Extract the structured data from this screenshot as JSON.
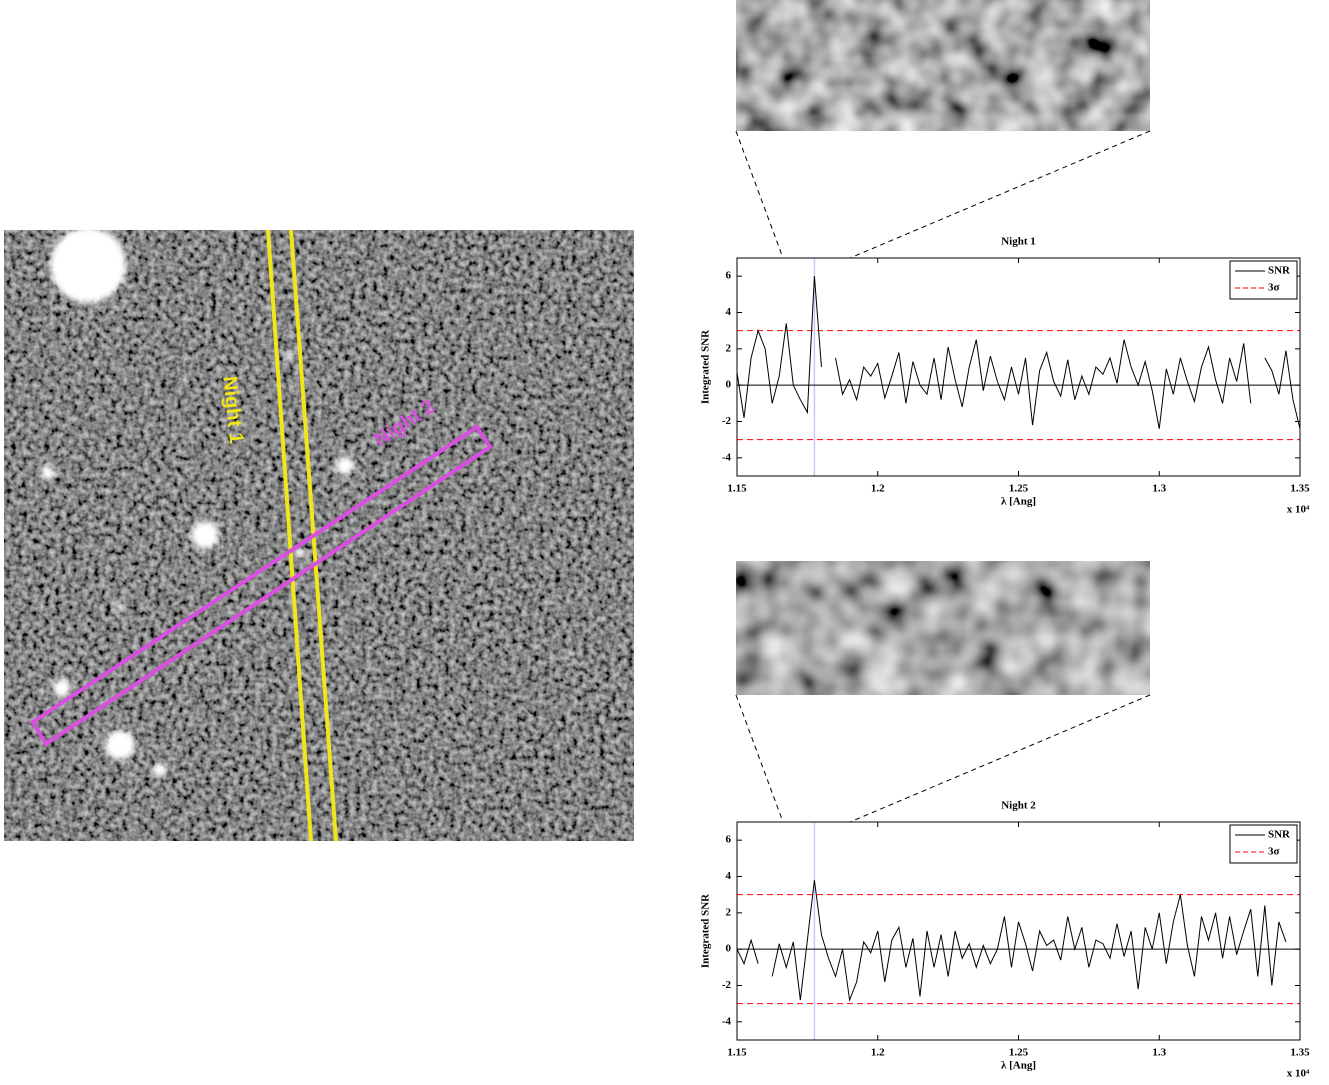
{
  "image": {
    "labels": [
      "Night 1",
      "Night 2"
    ]
  },
  "chart_data": [
    {
      "type": "line",
      "title": "Night 1",
      "xlabel": "λ [Ang]",
      "ylabel": "Integrated SNR",
      "x_offset_text": "x 10⁴",
      "x": [
        1.15,
        1.1525,
        1.155,
        1.1575,
        1.16,
        1.1625,
        1.165,
        1.1675,
        1.17,
        1.1725,
        1.175,
        1.1775,
        1.18,
        1.1825,
        1.185,
        1.1875,
        1.19,
        1.1925,
        1.195,
        1.1975,
        1.2,
        1.2025,
        1.205,
        1.2075,
        1.21,
        1.2125,
        1.215,
        1.2175,
        1.22,
        1.2225,
        1.225,
        1.2275,
        1.23,
        1.2325,
        1.235,
        1.2375,
        1.24,
        1.2425,
        1.245,
        1.2475,
        1.25,
        1.2525,
        1.255,
        1.2575,
        1.26,
        1.2625,
        1.265,
        1.2675,
        1.27,
        1.2725,
        1.275,
        1.2775,
        1.28,
        1.2825,
        1.285,
        1.2875,
        1.29,
        1.2925,
        1.295,
        1.2975,
        1.3,
        1.3025,
        1.305,
        1.3075,
        1.31,
        1.3125,
        1.315,
        1.3175,
        1.32,
        1.3225,
        1.325,
        1.3275,
        1.33,
        1.3325,
        1.335,
        1.3375,
        1.34,
        1.3425,
        1.345,
        1.3475,
        1.35
      ],
      "series": [
        {
          "name": "SNR",
          "color": "#000000",
          "values": [
            0.7,
            -1.8,
            1.5,
            3.0,
            2.0,
            -1.0,
            0.5,
            3.4,
            0.0,
            -0.8,
            -1.5,
            6.0,
            1.0,
            null,
            1.5,
            -0.5,
            0.3,
            -0.8,
            1.0,
            0.5,
            1.2,
            -0.7,
            0.5,
            1.8,
            -1.0,
            1.3,
            0.0,
            -0.5,
            1.5,
            -0.8,
            2.1,
            0.3,
            -1.2,
            1.0,
            2.5,
            -0.3,
            1.6,
            0.2,
            -0.8,
            1.0,
            -0.5,
            1.5,
            -2.2,
            0.8,
            1.8,
            0.2,
            -0.6,
            1.4,
            -0.8,
            0.5,
            -0.5,
            1.0,
            0.6,
            1.5,
            0.1,
            2.5,
            1.0,
            0.0,
            1.3,
            -0.3,
            -2.4,
            0.9,
            -0.5,
            1.5,
            0.2,
            -0.9,
            1.0,
            2.1,
            0.3,
            -1.0,
            1.5,
            0.2,
            2.3,
            -1.0,
            null,
            1.5,
            0.8,
            -0.5,
            1.9,
            -0.8,
            -2.4
          ]
        }
      ],
      "threshold": {
        "name": "3σ",
        "color": "#ff0000",
        "values": [
          3,
          -3
        ]
      },
      "marker_x": 1.1775,
      "marker_color": "#c8c8f0",
      "xlim": [
        1.15,
        1.35
      ],
      "ylim": [
        -5,
        7
      ],
      "xticks": [
        1.15,
        1.2,
        1.25,
        1.3,
        1.35
      ],
      "yticks": [
        -4,
        -2,
        0,
        2,
        4,
        6
      ],
      "legend": "upper right"
    },
    {
      "type": "line",
      "title": "Night 2",
      "xlabel": "λ [Ang]",
      "ylabel": "Integrated SNR",
      "x_offset_text": "x 10⁴",
      "x": [
        1.15,
        1.1525,
        1.155,
        1.1575,
        1.16,
        1.1625,
        1.165,
        1.1675,
        1.17,
        1.1725,
        1.175,
        1.1775,
        1.18,
        1.1825,
        1.185,
        1.1875,
        1.19,
        1.1925,
        1.195,
        1.1975,
        1.2,
        1.2025,
        1.205,
        1.2075,
        1.21,
        1.2125,
        1.215,
        1.2175,
        1.22,
        1.2225,
        1.225,
        1.2275,
        1.23,
        1.2325,
        1.235,
        1.2375,
        1.24,
        1.2425,
        1.245,
        1.2475,
        1.25,
        1.2525,
        1.255,
        1.2575,
        1.26,
        1.2625,
        1.265,
        1.2675,
        1.27,
        1.2725,
        1.275,
        1.2775,
        1.28,
        1.2825,
        1.285,
        1.2875,
        1.29,
        1.2925,
        1.295,
        1.2975,
        1.3,
        1.3025,
        1.305,
        1.3075,
        1.31,
        1.3125,
        1.315,
        1.3175,
        1.32,
        1.3225,
        1.325,
        1.3275,
        1.33,
        1.3325,
        1.335,
        1.3375,
        1.34,
        1.3425,
        1.345,
        1.3475,
        1.35
      ],
      "series": [
        {
          "name": "SNR",
          "color": "#000000",
          "values": [
            0.0,
            -0.8,
            0.5,
            -0.8,
            null,
            -1.5,
            0.3,
            -1.0,
            0.4,
            -2.8,
            0.5,
            3.8,
            0.8,
            -0.5,
            -1.5,
            0.0,
            -2.8,
            -1.8,
            0.4,
            -0.2,
            1.0,
            -1.8,
            0.5,
            1.2,
            -1.0,
            0.6,
            -2.6,
            1.0,
            -1.0,
            0.8,
            -1.5,
            1.0,
            -0.5,
            0.3,
            -1.0,
            0.2,
            -0.8,
            0.0,
            1.8,
            -1.0,
            1.5,
            0.3,
            -1.2,
            1.0,
            0.2,
            0.5,
            -0.6,
            1.8,
            0.0,
            1.2,
            -1.0,
            0.5,
            0.3,
            -0.5,
            1.4,
            -0.4,
            1.0,
            -2.2,
            1.2,
            0.0,
            2.0,
            -0.8,
            1.5,
            3.0,
            0.2,
            -1.5,
            1.8,
            0.5,
            2.0,
            -0.5,
            1.8,
            -0.3,
            1.0,
            2.2,
            -1.5,
            2.4,
            -2.0,
            1.5,
            0.4,
            null,
            null
          ]
        }
      ],
      "threshold": {
        "name": "3σ",
        "color": "#ff0000",
        "values": [
          3,
          -3
        ]
      },
      "marker_x": 1.1775,
      "marker_color": "#c8c8f0",
      "xlim": [
        1.15,
        1.35
      ],
      "ylim": [
        -5,
        7
      ],
      "xticks": [
        1.15,
        1.2,
        1.25,
        1.3,
        1.35
      ],
      "yticks": [
        -4,
        -2,
        0,
        2,
        4,
        6
      ],
      "legend": "upper right"
    }
  ]
}
